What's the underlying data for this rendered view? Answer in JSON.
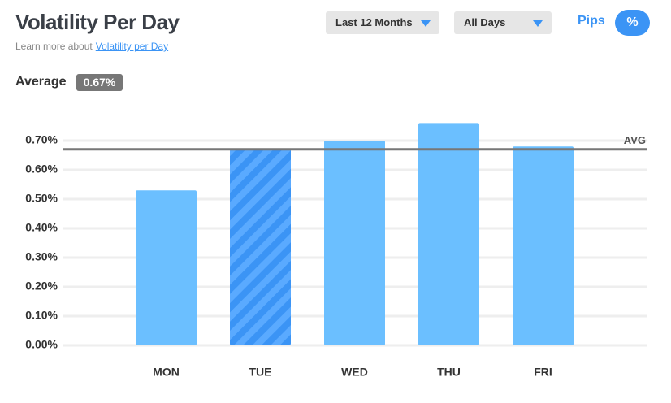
{
  "header": {
    "title": "Volatility Per Day",
    "subtitle": "Learn more about",
    "link": "Volatility per Day"
  },
  "controls": {
    "period": "Last 12 Months",
    "days": "All Days",
    "units": [
      "Pips",
      "%"
    ]
  },
  "chart_data": {
    "type": "bar",
    "categories": [
      "MON",
      "TUE",
      "WED",
      "THU",
      "FRI"
    ],
    "values": [
      0.53,
      0.67,
      0.7,
      0.76,
      0.68
    ],
    "color": "#6bbfff",
    "highlight_color": "#3b94f5",
    "highlight_index": 1,
    "ylim": [
      0,
      0.8
    ],
    "yticks": [
      {
        "value": 0,
        "label": "0.00%"
      },
      {
        "value": 0.1,
        "label": "0.10%"
      },
      {
        "value": 0.2,
        "label": "0.20%"
      },
      {
        "value": 0.3,
        "label": "0.30%"
      },
      {
        "value": 0.4,
        "label": "0.40%"
      },
      {
        "value": 0.5,
        "label": "0.50%"
      },
      {
        "value": 0.6,
        "label": "0.60%"
      },
      {
        "value": 0.7,
        "label": "0.70%"
      }
    ],
    "grid": true,
    "average": {
      "label": "Average",
      "value": 0.67,
      "value_label": "0.67%",
      "line_label": "AVG",
      "color": "#777777"
    }
  }
}
